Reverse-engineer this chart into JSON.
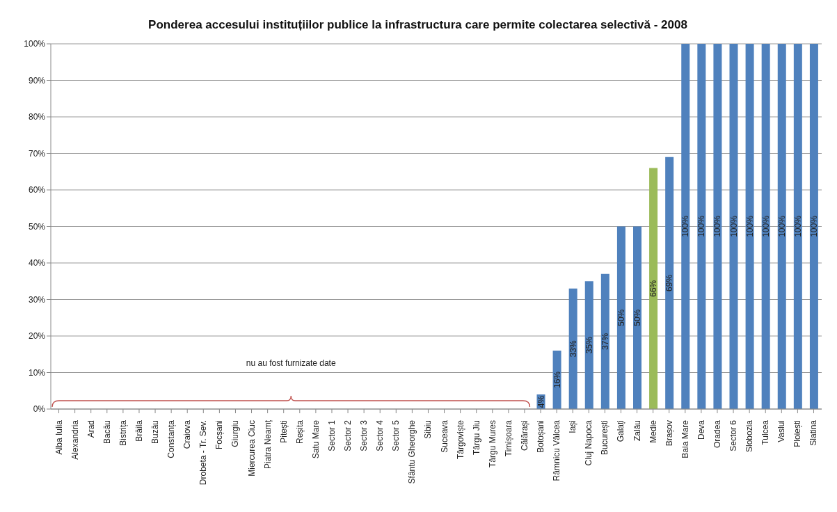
{
  "chart_data": {
    "type": "bar",
    "title": "Ponderea accesului instituțiilor publice la infrastructura care permite colectarea selectivă - 2008",
    "categories": [
      "Alba Iulia",
      "Alexandria",
      "Arad",
      "Bacău",
      "Bistrița",
      "Brăila",
      "Buzău",
      "Constanța",
      "Craiova",
      "Drobeta - Tr. Sev.",
      "Focșani",
      "Giurgiu",
      "Miercurea Ciuc",
      "Piatra Neamț",
      "Pitești",
      "Reșita",
      "Satu Mare",
      "Sector 1",
      "Sector 2",
      "Sector 3",
      "Sector 4",
      "Sector 5",
      "Sfântu Gheorghe",
      "Sibiu",
      "Suceava",
      "Târgoviște",
      "Târgu Jiu",
      "Târgu Mures",
      "Timișoara",
      "Călărași",
      "Botoșani",
      "Râmnicu Vâlcea",
      "Iași",
      "Cluj Napoca",
      "București",
      "Galați",
      "Zalău",
      "Medie",
      "Brașov",
      "Baia Mare",
      "Deva",
      "Oradea",
      "Sector 6",
      "Slobozia",
      "Tulcea",
      "Vaslui",
      "Ploiești",
      "Slatina"
    ],
    "values": [
      null,
      null,
      null,
      null,
      null,
      null,
      null,
      null,
      null,
      null,
      null,
      null,
      null,
      null,
      null,
      null,
      null,
      null,
      null,
      null,
      null,
      null,
      null,
      null,
      null,
      null,
      null,
      null,
      null,
      null,
      4,
      16,
      33,
      35,
      37,
      50,
      50,
      66,
      69,
      100,
      100,
      100,
      100,
      100,
      100,
      100,
      100,
      100
    ],
    "value_labels": [
      null,
      null,
      null,
      null,
      null,
      null,
      null,
      null,
      null,
      null,
      null,
      null,
      null,
      null,
      null,
      null,
      null,
      null,
      null,
      null,
      null,
      null,
      null,
      null,
      null,
      null,
      null,
      null,
      null,
      null,
      "4%",
      "16%",
      "33%",
      "35%",
      "37%",
      "50%",
      "50%",
      "66%",
      "69%",
      "100%",
      "100%",
      "100%",
      "100%",
      "100%",
      "100%",
      "100%",
      "100%",
      "100%"
    ],
    "colors": [
      "#4f81bd",
      "#4f81bd",
      "#4f81bd",
      "#4f81bd",
      "#4f81bd",
      "#4f81bd",
      "#4f81bd",
      "#4f81bd",
      "#4f81bd",
      "#4f81bd",
      "#4f81bd",
      "#4f81bd",
      "#4f81bd",
      "#4f81bd",
      "#4f81bd",
      "#4f81bd",
      "#4f81bd",
      "#4f81bd",
      "#4f81bd",
      "#4f81bd",
      "#4f81bd",
      "#4f81bd",
      "#4f81bd",
      "#4f81bd",
      "#4f81bd",
      "#4f81bd",
      "#4f81bd",
      "#4f81bd",
      "#4f81bd",
      "#4f81bd",
      "#4f81bd",
      "#4f81bd",
      "#4f81bd",
      "#4f81bd",
      "#4f81bd",
      "#4f81bd",
      "#4f81bd",
      "#9bbb59",
      "#4f81bd",
      "#4f81bd",
      "#4f81bd",
      "#4f81bd",
      "#4f81bd",
      "#4f81bd",
      "#4f81bd",
      "#4f81bd",
      "#4f81bd",
      "#4f81bd"
    ],
    "ylim": [
      0,
      100
    ],
    "yticks": [
      {
        "value": 0,
        "label": "0%"
      },
      {
        "value": 10,
        "label": "10%"
      },
      {
        "value": 20,
        "label": "20%"
      },
      {
        "value": 30,
        "label": "30%"
      },
      {
        "value": 40,
        "label": "40%"
      },
      {
        "value": 50,
        "label": "50%"
      },
      {
        "value": 60,
        "label": "60%"
      },
      {
        "value": 70,
        "label": "70%"
      },
      {
        "value": 80,
        "label": "80%"
      },
      {
        "value": 90,
        "label": "90%"
      },
      {
        "value": 100,
        "label": "100%"
      }
    ],
    "grid": "y",
    "annotations": [
      "nu au fost furnizate date"
    ]
  }
}
